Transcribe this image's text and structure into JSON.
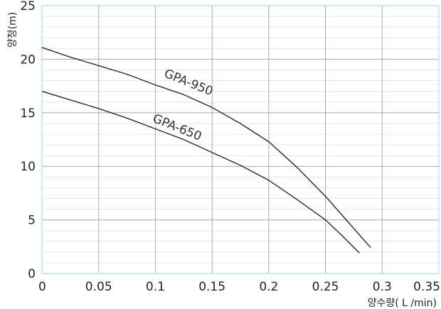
{
  "chart_data": {
    "type": "line",
    "title": "",
    "xlabel": "양수량( L /min)",
    "ylabel": "양정(m)",
    "xlim": [
      0,
      0.35
    ],
    "ylim": [
      0,
      25
    ],
    "x_ticks": [
      0,
      0.05,
      0.1,
      0.15,
      0.2,
      0.25,
      0.3,
      0.35
    ],
    "x_tick_labels": [
      "0",
      "0.05",
      "0.1",
      "0.15",
      "0.2",
      "0.25",
      "0.3",
      "0.35"
    ],
    "y_ticks": [
      0,
      5,
      10,
      15,
      20,
      25
    ],
    "y_tick_labels": [
      "0",
      "5",
      "10",
      "15",
      "20",
      "25"
    ],
    "y_minor_step": 1,
    "grid": true,
    "legend": "none",
    "colors": {
      "major_grid": "#a9a9a9",
      "minor_grid": "#dce8f2",
      "frame": "#9fd3e6",
      "curve": "#2a2a2a"
    },
    "series": [
      {
        "name": "GPA-950",
        "x": [
          0,
          0.025,
          0.05,
          0.075,
          0.1,
          0.125,
          0.15,
          0.175,
          0.2,
          0.225,
          0.25,
          0.27,
          0.29
        ],
        "y": [
          21.1,
          20.2,
          19.4,
          18.6,
          17.6,
          16.7,
          15.5,
          14.0,
          12.3,
          9.9,
          7.2,
          4.8,
          2.4
        ]
      },
      {
        "name": "GPA-650",
        "x": [
          0,
          0.025,
          0.05,
          0.075,
          0.1,
          0.125,
          0.15,
          0.175,
          0.2,
          0.225,
          0.25,
          0.265,
          0.28
        ],
        "y": [
          17.0,
          16.2,
          15.4,
          14.5,
          13.5,
          12.5,
          11.3,
          10.1,
          8.7,
          6.9,
          5.0,
          3.5,
          1.9
        ]
      }
    ],
    "annotations": [
      {
        "text": "GPA-950",
        "x": 0.128,
        "y": 17.5,
        "angle": 22
      },
      {
        "text": "GPA-650",
        "x": 0.118,
        "y": 13.3,
        "angle": 22
      }
    ]
  }
}
